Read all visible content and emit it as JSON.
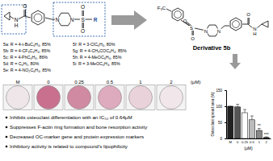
{
  "scaffold": {
    "labels": [
      "N",
      "H",
      "O",
      "N",
      "N",
      "S",
      "O",
      "O",
      "R"
    ]
  },
  "compounds": [
    "5a: R = 4-t-BuC₆H₄, 85%",
    "5b: R = 4-CF₃C₆H₄, 85%",
    "5c: R = 4-PhC₆H₄, 86%",
    "5d: R = C₆H₅, 80%",
    "5e: R = 4-NO₂C₆H₄, 85%",
    "5f: R = 3-ClC₆H₄, 80%",
    "5g: R = 4-CH₃COC₆H₄, 85%",
    "5h: R = 4-MeOC₆H₄, 85%",
    "5i: R = 3-MeOC₆H₄, 85%"
  ],
  "derivative": {
    "title": "Derivative 5b",
    "labels": [
      "F₃C",
      "S",
      "O",
      "O",
      "N",
      "N",
      "O",
      "N",
      "H"
    ]
  },
  "wells": {
    "labels": [
      "M",
      "0",
      "0.25",
      "0.5",
      "1",
      "2"
    ],
    "unit": "(μM)"
  },
  "findings": [
    "Inhibits osteoclast differentiation with an IC₅₀ of 0.64μM",
    "Suppresses F-actin ring formation and bone resorption activity",
    "Decreased OC-marker gene and protein expression markers",
    "Inhibitory activity is related to compound's lipophilicity"
  ],
  "chart_data": {
    "type": "bar",
    "categories": [
      "M",
      "0",
      "0.25",
      "0.5",
      "1",
      "2"
    ],
    "values": [
      100,
      98,
      80,
      58,
      25,
      3
    ],
    "errors": [
      0,
      8,
      10,
      12,
      6,
      2
    ],
    "colors": [
      "#222222",
      "#555555",
      "#ffffff",
      "#bbbbbb",
      "#888888",
      "#444444"
    ],
    "ylabel": "Osteoclast spread area (%)",
    "xlabel": "(μM)",
    "ylim": [
      0,
      150
    ],
    "yticks": [
      0,
      50,
      100,
      150
    ],
    "annotations": [
      null,
      null,
      null,
      null,
      "**",
      "***"
    ]
  }
}
